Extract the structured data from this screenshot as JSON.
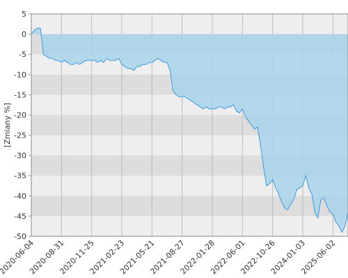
{
  "chart_data": {
    "type": "area",
    "y_label": "[Zmiany %]",
    "categories": [
      "2020-06-04",
      null,
      null,
      null,
      null,
      null,
      null,
      null,
      null,
      null,
      "2020-08-31",
      null,
      null,
      null,
      null,
      null,
      null,
      null,
      null,
      null,
      "2020-11-25",
      null,
      null,
      null,
      null,
      null,
      null,
      null,
      null,
      null,
      "2021-02-23",
      null,
      null,
      null,
      null,
      null,
      null,
      null,
      null,
      null,
      "2021-05-21",
      null,
      null,
      null,
      null,
      null,
      null,
      null,
      null,
      null,
      "2021-08-27",
      null,
      null,
      null,
      null,
      null,
      null,
      null,
      null,
      null,
      "2022-01-28",
      null,
      null,
      null,
      null,
      null,
      null,
      null,
      null,
      null,
      "2022-06-01",
      null,
      null,
      null,
      null,
      null,
      null,
      null,
      null,
      null,
      "2022-10-26",
      null,
      null,
      null,
      null,
      null,
      null,
      null,
      null,
      null,
      "2024-01-03",
      null,
      null,
      null,
      null,
      null,
      null,
      null,
      null,
      null,
      "2025-06-02",
      null,
      null,
      null,
      null,
      null
    ],
    "values": [
      0,
      1,
      1.5,
      1.5,
      -5,
      -5.5,
      -6,
      -6,
      -6.5,
      -6.5,
      -7,
      -6.5,
      -7,
      -7.5,
      -7.5,
      -7,
      -7.5,
      -7,
      -6.5,
      -6.5,
      -6.5,
      -6.5,
      -7,
      -6.5,
      -7,
      -6,
      -6.5,
      -6.5,
      -6.5,
      -6,
      -7.5,
      -8,
      -8.5,
      -8.5,
      -9,
      -8,
      -8,
      -7.5,
      -7.5,
      -7,
      -7,
      -6.5,
      -6,
      -6.5,
      -7,
      -7,
      -9,
      -14,
      -15,
      -15.5,
      -15.5,
      -15.5,
      -16,
      -16.5,
      -17,
      -17.5,
      -18,
      -18.5,
      -18,
      -18.5,
      -18.5,
      -18.5,
      -18,
      -18,
      -18.5,
      -18,
      -18,
      -17.5,
      -19,
      -19.5,
      -18.5,
      -20.5,
      -21.5,
      -22.5,
      -23.5,
      -23,
      -27.5,
      -33,
      -37.5,
      -37,
      -36,
      -38,
      -39.5,
      -41.5,
      -43,
      -43.5,
      -42,
      -41,
      -38.5,
      -38,
      -37.5,
      -35,
      -38,
      -39.5,
      -44,
      -45.5,
      -41,
      -40.5,
      -42.5,
      -44,
      -44.5,
      -46.5,
      -47.5,
      -49,
      -47.5,
      -44
    ],
    "color": "#3d97e3",
    "fill_color": "#a9d4ea",
    "ylim": [
      -50,
      5
    ],
    "yticks": [
      5,
      0,
      -5,
      -10,
      -15,
      -20,
      -25,
      -30,
      -35,
      -40,
      -45,
      -50
    ],
    "grid": true
  }
}
